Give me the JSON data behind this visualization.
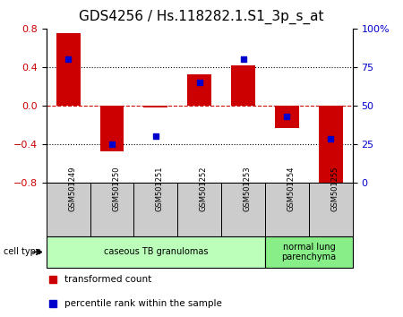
{
  "title": "GDS4256 / Hs.118282.1.S1_3p_s_at",
  "samples": [
    "GSM501249",
    "GSM501250",
    "GSM501251",
    "GSM501252",
    "GSM501253",
    "GSM501254",
    "GSM501255"
  ],
  "red_values": [
    0.75,
    -0.48,
    -0.02,
    0.32,
    0.42,
    -0.24,
    -0.85
  ],
  "blue_values": [
    80,
    25,
    30,
    65,
    80,
    43,
    28
  ],
  "left_ylim": [
    -0.8,
    0.8
  ],
  "right_ylim": [
    0,
    100
  ],
  "left_yticks": [
    -0.8,
    -0.4,
    0,
    0.4,
    0.8
  ],
  "right_yticks": [
    0,
    25,
    50,
    75,
    100
  ],
  "right_yticklabels": [
    "0",
    "25",
    "50",
    "75",
    "100%"
  ],
  "dotted_lines": [
    -0.4,
    0.0,
    0.4
  ],
  "red_color": "#cc0000",
  "blue_color": "#0000cc",
  "bar_width": 0.55,
  "blue_marker_size": 5,
  "groups": [
    {
      "label": "caseous TB granulomas",
      "indices": [
        0,
        1,
        2,
        3,
        4
      ],
      "color": "#bbffbb"
    },
    {
      "label": "normal lung\nparenchyma",
      "indices": [
        5,
        6
      ],
      "color": "#88ee88"
    }
  ],
  "cell_type_box_color": "#cccccc",
  "legend_red": "transformed count",
  "legend_blue": "percentile rank within the sample",
  "title_fontsize": 11
}
